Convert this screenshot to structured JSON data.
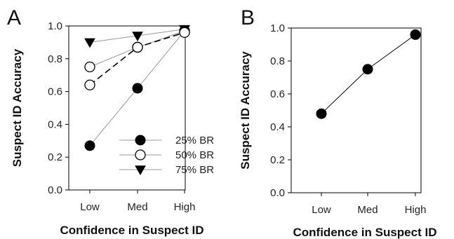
{
  "chart_data": [
    {
      "panel": "A",
      "type": "line",
      "categories": [
        "Low",
        "Med",
        "High"
      ],
      "xlabel": "Confidence in Suspect ID",
      "ylabel": "Suspect ID Accuracy",
      "ylim": [
        0,
        1.0
      ],
      "yticks": [
        "0.0",
        "0.2",
        "0.4",
        "0.6",
        "0.8",
        "1.0"
      ],
      "grid": false,
      "legend_position": "bottom-right",
      "series": [
        {
          "name": "25% BR",
          "values": [
            0.27,
            0.62,
            0.97
          ],
          "marker": "circle-filled",
          "line": "solid",
          "color": "#999999"
        },
        {
          "name": "50% BR",
          "values": [
            0.75,
            0.87,
            0.97
          ],
          "marker": "circle-open",
          "line": "solid",
          "color": "#999999"
        },
        {
          "name": "75% BR",
          "values": [
            0.9,
            0.94,
            0.98
          ],
          "marker": "triangle-down-filled",
          "line": "solid",
          "color": "#999999"
        },
        {
          "name": "",
          "values": [
            0.64,
            0.87,
            0.96
          ],
          "marker": "circle-open",
          "line": "dashed",
          "color": "#000000"
        }
      ]
    },
    {
      "panel": "B",
      "type": "line",
      "categories": [
        "Low",
        "Med",
        "High"
      ],
      "xlabel": "Confidence in Suspect ID",
      "ylabel": "Suspect ID Accuracy",
      "ylim": [
        0,
        1.0
      ],
      "yticks": [
        "0.0",
        "0.2",
        "0.4",
        "0.6",
        "0.8",
        "1.0"
      ],
      "grid": false,
      "series": [
        {
          "name": "",
          "values": [
            0.48,
            0.75,
            0.96
          ],
          "marker": "circle-filled",
          "line": "solid",
          "color": "#000000"
        }
      ]
    }
  ]
}
